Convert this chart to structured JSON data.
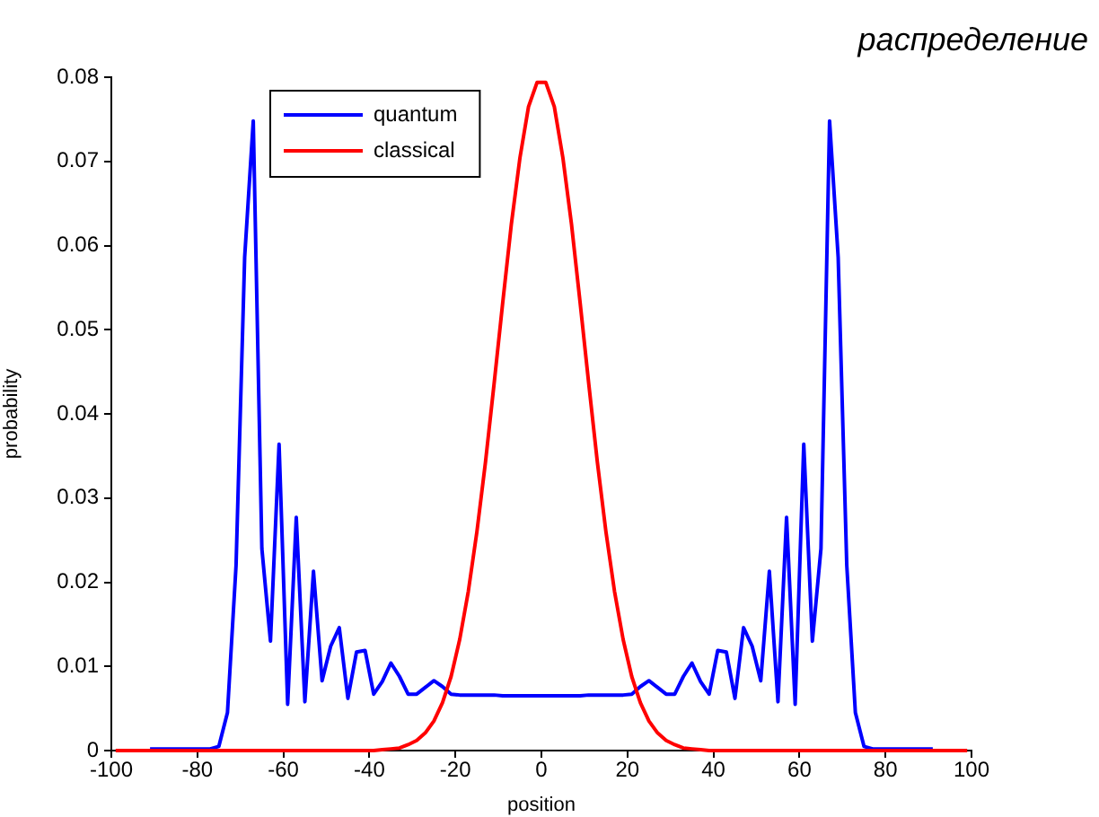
{
  "chart_data": {
    "type": "line",
    "title": "распределение",
    "xlabel": "position",
    "ylabel": "probability",
    "x": [
      -99,
      -97,
      -95,
      -93,
      -91,
      -89,
      -87,
      -85,
      -83,
      -81,
      -79,
      -77,
      -75,
      -73,
      -71,
      -69,
      -67,
      -65,
      -63,
      -61,
      -59,
      -57,
      -55,
      -53,
      -51,
      -49,
      -47,
      -45,
      -43,
      -41,
      -39,
      -37,
      -35,
      -33,
      -31,
      -29,
      -27,
      -25,
      -23,
      -21,
      -19,
      -17,
      -15,
      -13,
      -11,
      -9,
      -7,
      -5,
      -3,
      -1,
      1,
      3,
      5,
      7,
      9,
      11,
      13,
      15,
      17,
      19,
      21,
      23,
      25,
      27,
      29,
      31,
      33,
      35,
      37,
      39,
      41,
      43,
      45,
      47,
      49,
      51,
      53,
      55,
      57,
      59,
      61,
      63,
      65,
      67,
      69,
      71,
      73,
      75,
      77,
      79,
      81,
      83,
      85,
      87,
      89,
      91,
      93,
      95,
      97,
      99
    ],
    "series": [
      {
        "name": "quantum",
        "color": "#0000ff",
        "values": [
          null,
          null,
          null,
          null,
          0.0002,
          0.0002,
          0.0002,
          0.0002,
          0.0002,
          0.0002,
          0.0002,
          0.0002,
          0.0005,
          0.0045,
          0.022,
          0.0586,
          0.0748,
          0.024,
          0.013,
          0.0364,
          0.0055,
          0.0277,
          0.0058,
          0.0213,
          0.0083,
          0.0124,
          0.0146,
          0.0062,
          0.0117,
          0.0119,
          0.0067,
          0.0082,
          0.0104,
          0.0088,
          0.0067,
          0.0067,
          0.0075,
          0.0083,
          0.0076,
          0.0067,
          0.0066,
          0.0066,
          0.0066,
          0.0066,
          0.0066,
          0.0065,
          0.0065,
          0.0065,
          0.0065,
          0.0065,
          0.0065,
          0.0065,
          0.0065,
          0.0065,
          0.0065,
          0.0066,
          0.0066,
          0.0066,
          0.0066,
          0.0066,
          0.0067,
          0.0076,
          0.0083,
          0.0075,
          0.0067,
          0.0067,
          0.0088,
          0.0104,
          0.0082,
          0.0067,
          0.0119,
          0.0117,
          0.0062,
          0.0146,
          0.0124,
          0.0083,
          0.0213,
          0.0058,
          0.0277,
          0.0055,
          0.0364,
          0.013,
          0.024,
          0.0748,
          0.0586,
          0.022,
          0.0045,
          0.0005,
          0.0002,
          0.0002,
          0.0002,
          0.0002,
          0.0002,
          0.0002,
          0.0002,
          0.0002,
          null,
          null,
          null,
          null
        ]
      },
      {
        "name": "classical",
        "color": "#ff0000",
        "values": [
          0,
          0,
          0,
          0,
          0,
          0,
          0,
          0,
          0,
          0,
          0,
          0,
          0,
          0,
          0,
          0,
          0,
          0,
          0,
          0,
          0,
          0,
          0,
          0,
          0,
          0,
          0,
          0,
          0,
          0,
          0,
          0.0001,
          0.0002,
          0.0003,
          0.0007,
          0.0012,
          0.0021,
          0.0035,
          0.0057,
          0.0088,
          0.0132,
          0.0189,
          0.026,
          0.0343,
          0.0436,
          0.0532,
          0.0625,
          0.0704,
          0.0765,
          0.0794,
          0.0794,
          0.0765,
          0.0704,
          0.0625,
          0.0532,
          0.0436,
          0.0343,
          0.026,
          0.0189,
          0.0132,
          0.0088,
          0.0057,
          0.0035,
          0.0021,
          0.0012,
          0.0007,
          0.0003,
          0.0002,
          0.0001,
          0,
          0,
          0,
          0,
          0,
          0,
          0,
          0,
          0,
          0,
          0,
          0,
          0,
          0,
          0,
          0,
          0,
          0,
          0,
          0,
          0,
          0,
          0,
          0,
          0,
          0,
          0,
          0,
          0,
          0,
          0
        ]
      }
    ],
    "xlim": [
      -100,
      100
    ],
    "xticks": [
      -100,
      -80,
      -60,
      -40,
      -20,
      0,
      20,
      40,
      60,
      80,
      100
    ],
    "ylim": [
      0,
      0.08
    ],
    "yticks": [
      0,
      0.01,
      0.02,
      0.03,
      0.04,
      0.05,
      0.06,
      0.07,
      0.08
    ],
    "grid": false,
    "legend": "top left",
    "marker": "none",
    "line_style": "solid"
  }
}
